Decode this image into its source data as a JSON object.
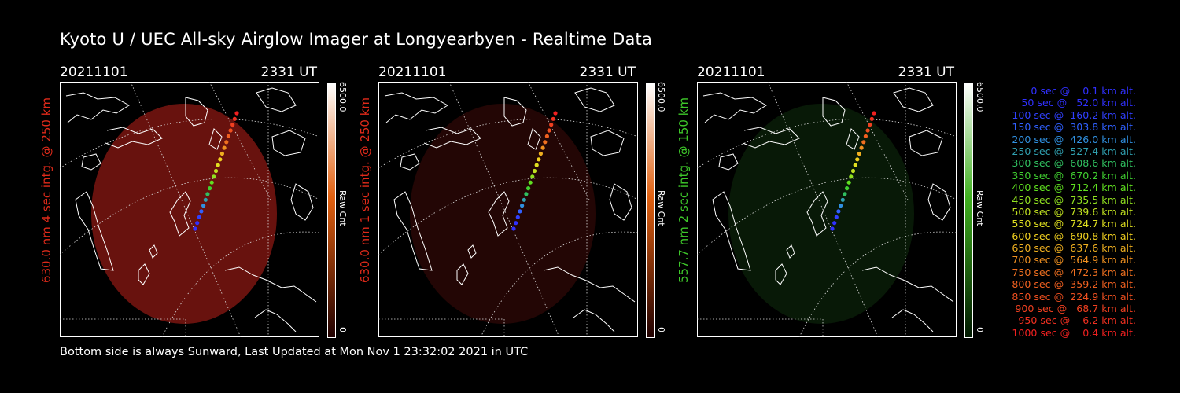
{
  "title": "Kyoto U / UEC All-sky Airglow Imager at Longyearbyen - Realtime Data",
  "footer": "Bottom side is always Sunward, Last Updated at Mon Nov  1 23:32:02 2021 in UTC",
  "panels": [
    {
      "date": "20211101",
      "time": "2331 UT",
      "ylabel": "630.0 nm 4 sec intg. @ 250 km",
      "label_color": "#e02a1a",
      "glow_color": "#7a1510",
      "glow_opacity": 0.85,
      "cbar_max": "6500.0",
      "cbar_unit": "Raw Cnt",
      "cbar_min": "0",
      "cbar_top": "#ffffff",
      "cbar_mid": "#e06010",
      "cbar_bot": "#200000"
    },
    {
      "date": "20211101",
      "time": "2331 UT",
      "ylabel": "630.0 nm 1 sec intg. @ 250 km",
      "label_color": "#e02a1a",
      "glow_color": "#3a0a08",
      "glow_opacity": 0.6,
      "cbar_max": "6500.0",
      "cbar_unit": "Raw Cnt",
      "cbar_min": "0",
      "cbar_top": "#ffffff",
      "cbar_mid": "#e06010",
      "cbar_bot": "#200000"
    },
    {
      "date": "20211101",
      "time": "2331 UT",
      "ylabel": "557.7 nm 2 sec intg. @ 150 km",
      "label_color": "#3ec82a",
      "glow_color": "#0e2a0c",
      "glow_opacity": 0.6,
      "cbar_max": "6500.0",
      "cbar_unit": "Raw Cnt",
      "cbar_min": "0",
      "cbar_top": "#ffffff",
      "cbar_mid": "#40b020",
      "cbar_bot": "#001800"
    }
  ],
  "legend": [
    {
      "text": "   0 sec @    0.1 km alt.",
      "color": "#3030ff"
    },
    {
      "text": "  50 sec @   52.0 km alt.",
      "color": "#3030ff"
    },
    {
      "text": " 100 sec @  160.2 km alt.",
      "color": "#3040ff"
    },
    {
      "text": " 150 sec @  303.8 km alt.",
      "color": "#3060ff"
    },
    {
      "text": " 200 sec @  426.0 km alt.",
      "color": "#3090e0"
    },
    {
      "text": " 250 sec @  527.4 km alt.",
      "color": "#30a0b0"
    },
    {
      "text": " 300 sec @  608.6 km alt.",
      "color": "#30c060"
    },
    {
      "text": " 350 sec @  670.2 km alt.",
      "color": "#40d030"
    },
    {
      "text": " 400 sec @  712.4 km alt.",
      "color": "#60e020"
    },
    {
      "text": " 450 sec @  735.5 km alt.",
      "color": "#90e020"
    },
    {
      "text": " 500 sec @  739.6 km alt.",
      "color": "#c0e020"
    },
    {
      "text": " 550 sec @  724.7 km alt.",
      "color": "#e0e020"
    },
    {
      "text": " 600 sec @  690.8 km alt.",
      "color": "#f0d020"
    },
    {
      "text": " 650 sec @  637.6 km alt.",
      "color": "#f0b020"
    },
    {
      "text": " 700 sec @  564.9 km alt.",
      "color": "#f09020"
    },
    {
      "text": " 750 sec @  472.3 km alt.",
      "color": "#f07020"
    },
    {
      "text": " 800 sec @  359.2 km alt.",
      "color": "#f06020"
    },
    {
      "text": " 850 sec @  224.9 km alt.",
      "color": "#f05020"
    },
    {
      "text": " 900 sec @   68.7 km alt.",
      "color": "#f04020"
    },
    {
      "text": " 950 sec @    6.2 km alt.",
      "color": "#f03020"
    },
    {
      "text": "1000 sec @    0.4 km alt.",
      "color": "#f02020"
    }
  ]
}
